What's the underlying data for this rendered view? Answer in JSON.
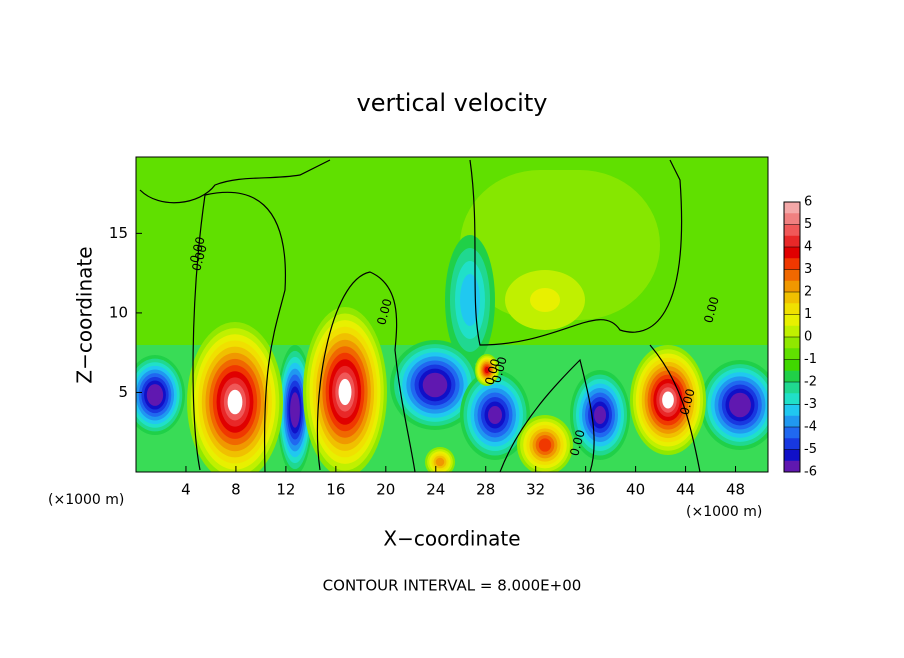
{
  "chart_data": {
    "type": "contour",
    "title": "vertical velocity",
    "xlabel": "X−coordinate",
    "ylabel": "Z−coordinate",
    "x_unit": "(×1000 m)",
    "x_unit_right": "(×1000 m)",
    "footer": "CONTOUR INTERVAL = 8.000E+00",
    "xlim": [
      0,
      50.6
    ],
    "xticks": [
      4,
      8,
      12,
      16,
      20,
      24,
      28,
      32,
      36,
      40,
      44,
      48
    ],
    "ylim": [
      0,
      19.8
    ],
    "yticks": [
      5,
      10,
      15
    ],
    "contour_labels": [
      "0.00",
      "0.00",
      "0.00",
      "0.00",
      "0.00",
      "0.00",
      "0.00",
      "0.00"
    ],
    "colorbar": {
      "lim": [
        -6,
        6
      ],
      "ticks": [
        6,
        5,
        4,
        3,
        2,
        1,
        0,
        -1,
        -2,
        -3,
        -4,
        -5,
        -6
      ],
      "colors": [
        "#f4a8a8",
        "#f08080",
        "#f05858",
        "#e82828",
        "#e00000",
        "#f03800",
        "#f06800",
        "#f09800",
        "#f0c000",
        "#f0e000",
        "#e8f000",
        "#c0f000",
        "#90e800",
        "#60e000",
        "#40d800",
        "#20d048",
        "#20d890",
        "#20e0c8",
        "#20c8f0",
        "#2098f0",
        "#2068f0",
        "#1838e0",
        "#1010c8",
        "#6018b0"
      ]
    }
  }
}
